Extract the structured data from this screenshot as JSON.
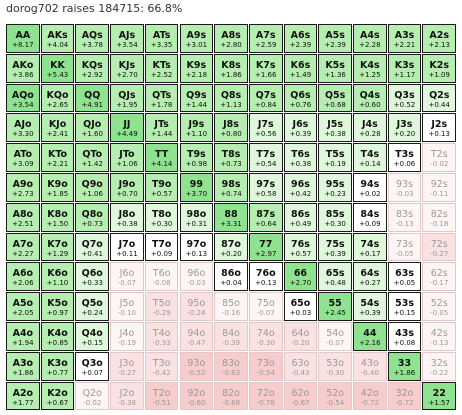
{
  "header": {
    "title": "dorog702 raises 184715: 66.8%"
  },
  "colors": {
    "raise_strong": "#8fe28f",
    "raise_medium": "#b5eeb0",
    "raise_light": "#dff7da",
    "raise_white": "#ffffff",
    "fold_light": "#fff5f5",
    "fold_medium": "#fbe2e2",
    "fold_strong": "#f6cccc"
  },
  "rows": [
    [
      [
        "AA",
        "+8.17",
        "s"
      ],
      [
        "AKs",
        "+4.04",
        "m"
      ],
      [
        "AQs",
        "+3.78",
        "m"
      ],
      [
        "AJs",
        "+3.54",
        "m"
      ],
      [
        "ATs",
        "+3.35",
        "m"
      ],
      [
        "A9s",
        "+3.01",
        "m"
      ],
      [
        "A8s",
        "+2.80",
        "m"
      ],
      [
        "A7s",
        "+2.59",
        "m"
      ],
      [
        "A6s",
        "+2.39",
        "m"
      ],
      [
        "A5s",
        "+2.39",
        "m"
      ],
      [
        "A4s",
        "+2.28",
        "m"
      ],
      [
        "A3s",
        "+2.21",
        "m"
      ],
      [
        "A2s",
        "+2.13",
        "m"
      ]
    ],
    [
      [
        "AKo",
        "+3.86",
        "m"
      ],
      [
        "KK",
        "+5.43",
        "s"
      ],
      [
        "KQs",
        "+2.92",
        "m"
      ],
      [
        "KJs",
        "+2.70",
        "m"
      ],
      [
        "KTs",
        "+2.52",
        "m"
      ],
      [
        "K9s",
        "+2.18",
        "m"
      ],
      [
        "K8s",
        "+1.86",
        "m"
      ],
      [
        "K7s",
        "+1.66",
        "m"
      ],
      [
        "K6s",
        "+1.49",
        "m"
      ],
      [
        "K5s",
        "+1.36",
        "m"
      ],
      [
        "K4s",
        "+1.25",
        "m"
      ],
      [
        "K3s",
        "+1.17",
        "m"
      ],
      [
        "K2s",
        "+1.09",
        "m"
      ]
    ],
    [
      [
        "AQo",
        "+3.54",
        "s"
      ],
      [
        "KQo",
        "+2.65",
        "m"
      ],
      [
        "QQ",
        "+4.91",
        "s"
      ],
      [
        "QJs",
        "+1.95",
        "m"
      ],
      [
        "QTs",
        "+1.78",
        "m"
      ],
      [
        "Q9s",
        "+1.44",
        "m"
      ],
      [
        "Q8s",
        "+1.13",
        "m"
      ],
      [
        "Q7s",
        "+0.84",
        "m"
      ],
      [
        "Q6s",
        "+0.76",
        "m"
      ],
      [
        "Q5s",
        "+0.68",
        "m"
      ],
      [
        "Q4s",
        "+0.60",
        "m"
      ],
      [
        "Q3s",
        "+0.52",
        "l"
      ],
      [
        "Q2s",
        "+0.44",
        "l"
      ]
    ],
    [
      [
        "AJo",
        "+3.30",
        "m"
      ],
      [
        "KJo",
        "+2.41",
        "m"
      ],
      [
        "QJo",
        "+1.60",
        "m"
      ],
      [
        "JJ",
        "+4.49",
        "s"
      ],
      [
        "JTs",
        "+1.44",
        "m"
      ],
      [
        "J9s",
        "+1.10",
        "m"
      ],
      [
        "J8s",
        "+0.80",
        "m"
      ],
      [
        "J7s",
        "+0.56",
        "l"
      ],
      [
        "J6s",
        "+0.39",
        "l"
      ],
      [
        "J5s",
        "+0.38",
        "l"
      ],
      [
        "J4s",
        "+0.28",
        "l"
      ],
      [
        "J3s",
        "+0.20",
        "l"
      ],
      [
        "J2s",
        "+0.13",
        "w"
      ]
    ],
    [
      [
        "ATo",
        "+3.09",
        "m"
      ],
      [
        "KTo",
        "+2.21",
        "m"
      ],
      [
        "QTo",
        "+1.42",
        "m"
      ],
      [
        "JTo",
        "+1.06",
        "m"
      ],
      [
        "TT",
        "+4.14",
        "s"
      ],
      [
        "T9s",
        "+0.98",
        "m"
      ],
      [
        "T8s",
        "+0.73",
        "m"
      ],
      [
        "T7s",
        "+0.54",
        "l"
      ],
      [
        "T6s",
        "+0.38",
        "l"
      ],
      [
        "T5s",
        "+0.19",
        "l"
      ],
      [
        "T4s",
        "+0.14",
        "l"
      ],
      [
        "T3s",
        "+0.06",
        "w"
      ],
      [
        "T2s",
        "-0.02",
        "f1"
      ]
    ],
    [
      [
        "A9o",
        "+2.73",
        "m"
      ],
      [
        "K9o",
        "+1.85",
        "m"
      ],
      [
        "Q9o",
        "+1.06",
        "m"
      ],
      [
        "J9o",
        "+0.70",
        "m"
      ],
      [
        "T9o",
        "+0.57",
        "m"
      ],
      [
        "99",
        "+3.70",
        "s"
      ],
      [
        "98s",
        "+0.74",
        "m"
      ],
      [
        "97s",
        "+0.58",
        "l"
      ],
      [
        "96s",
        "+0.42",
        "l"
      ],
      [
        "95s",
        "+0.23",
        "l"
      ],
      [
        "94s",
        "+0.02",
        "w"
      ],
      [
        "93s",
        "-0.03",
        "f1"
      ],
      [
        "92s",
        "-0.11",
        "f1"
      ]
    ],
    [
      [
        "A8o",
        "+2.51",
        "m"
      ],
      [
        "K8o",
        "+1.50",
        "m"
      ],
      [
        "Q8o",
        "+0.73",
        "m"
      ],
      [
        "J8o",
        "+0.38",
        "l"
      ],
      [
        "T8o",
        "+0.30",
        "l"
      ],
      [
        "98o",
        "+0.31",
        "l"
      ],
      [
        "88",
        "+3.31",
        "s"
      ],
      [
        "87s",
        "+0.64",
        "m"
      ],
      [
        "86s",
        "+0.49",
        "l"
      ],
      [
        "85s",
        "+0.30",
        "l"
      ],
      [
        "84s",
        "+0.09",
        "w"
      ],
      [
        "83s",
        "-0.13",
        "f1"
      ],
      [
        "82s",
        "-0.18",
        "f1"
      ]
    ],
    [
      [
        "A7o",
        "+2.27",
        "m"
      ],
      [
        "K7o",
        "+1.29",
        "m"
      ],
      [
        "Q7o",
        "+0.41",
        "l"
      ],
      [
        "J7o",
        "+0.11",
        "w"
      ],
      [
        "T7o",
        "+0.09",
        "w"
      ],
      [
        "97o",
        "+0.13",
        "w"
      ],
      [
        "87o",
        "+0.20",
        "l"
      ],
      [
        "77",
        "+2.97",
        "s"
      ],
      [
        "76s",
        "+0.57",
        "l"
      ],
      [
        "75s",
        "+0.39",
        "l"
      ],
      [
        "74s",
        "+0.17",
        "l"
      ],
      [
        "73s",
        "-0.05",
        "f1"
      ],
      [
        "72s",
        "-0.27",
        "f2"
      ]
    ],
    [
      [
        "A6o",
        "+2.06",
        "m"
      ],
      [
        "K6o",
        "+1.10",
        "m"
      ],
      [
        "Q6o",
        "+0.33",
        "l"
      ],
      [
        "J6o",
        "-0.07",
        "f1"
      ],
      [
        "T6o",
        "-0.08",
        "f1"
      ],
      [
        "96o",
        "-0.03",
        "f1"
      ],
      [
        "86o",
        "+0.04",
        "w"
      ],
      [
        "76o",
        "+0.13",
        "w"
      ],
      [
        "66",
        "+2.70",
        "s"
      ],
      [
        "65s",
        "+0.48",
        "l"
      ],
      [
        "64s",
        "+0.27",
        "l"
      ],
      [
        "63s",
        "+0.05",
        "w"
      ],
      [
        "62s",
        "-0.17",
        "f1"
      ]
    ],
    [
      [
        "A5o",
        "+2.05",
        "m"
      ],
      [
        "K5o",
        "+0.97",
        "m"
      ],
      [
        "Q5o",
        "+0.24",
        "l"
      ],
      [
        "J5o",
        "-0.10",
        "f1"
      ],
      [
        "T5o",
        "-0.29",
        "f2"
      ],
      [
        "95o",
        "-0.24",
        "f2"
      ],
      [
        "85o",
        "-0.16",
        "f1"
      ],
      [
        "75o",
        "-0.07",
        "f1"
      ],
      [
        "65o",
        "+0.03",
        "w"
      ],
      [
        "55",
        "+2.45",
        "s"
      ],
      [
        "54s",
        "+0.39",
        "l"
      ],
      [
        "53s",
        "+0.15",
        "w"
      ],
      [
        "52s",
        "-0.05",
        "f1"
      ]
    ],
    [
      [
        "A4o",
        "+1.94",
        "m"
      ],
      [
        "K4o",
        "+0.85",
        "m"
      ],
      [
        "Q4o",
        "+0.15",
        "l"
      ],
      [
        "J4o",
        "-0.19",
        "f1"
      ],
      [
        "T4o",
        "-0.33",
        "f2"
      ],
      [
        "94o",
        "-0.47",
        "f2"
      ],
      [
        "84o",
        "-0.39",
        "f2"
      ],
      [
        "74o",
        "-0.30",
        "f2"
      ],
      [
        "64o",
        "-0.20",
        "f2"
      ],
      [
        "54o",
        "-0.07",
        "f1"
      ],
      [
        "44",
        "+2.16",
        "s"
      ],
      [
        "43s",
        "+0.08",
        "w"
      ],
      [
        "42s",
        "-0.13",
        "f1"
      ]
    ],
    [
      [
        "A3o",
        "+1.86",
        "m"
      ],
      [
        "K3o",
        "+0.77",
        "m"
      ],
      [
        "Q3o",
        "+0.07",
        "w"
      ],
      [
        "J3o",
        "-0.27",
        "f2"
      ],
      [
        "T3o",
        "-0.42",
        "f2"
      ],
      [
        "93o",
        "-0.52",
        "f3"
      ],
      [
        "83o",
        "-0.63",
        "f3"
      ],
      [
        "73o",
        "-0.54",
        "f3"
      ],
      [
        "63o",
        "-0.43",
        "f2"
      ],
      [
        "53o",
        "-0.30",
        "f2"
      ],
      [
        "43o",
        "-0.40",
        "f2"
      ],
      [
        "33",
        "+1.86",
        "s"
      ],
      [
        "32s",
        "-0.22",
        "f1"
      ]
    ],
    [
      [
        "A2o",
        "+1.77",
        "m"
      ],
      [
        "K2o",
        "+0.67",
        "m"
      ],
      [
        "Q2o",
        "-0.02",
        "f1"
      ],
      [
        "J2o",
        "-0.38",
        "f2"
      ],
      [
        "T2o",
        "-0.51",
        "f3"
      ],
      [
        "92o",
        "-0.60",
        "f3"
      ],
      [
        "82o",
        "-0.68",
        "f3"
      ],
      [
        "72o",
        "-0.78",
        "f3"
      ],
      [
        "62o",
        "-0.67",
        "f3"
      ],
      [
        "52o",
        "-0.54",
        "f3"
      ],
      [
        "42o",
        "-0.72",
        "f3"
      ],
      [
        "32o",
        "-0.72",
        "f3"
      ],
      [
        "22",
        "+1.57",
        "s"
      ]
    ]
  ]
}
